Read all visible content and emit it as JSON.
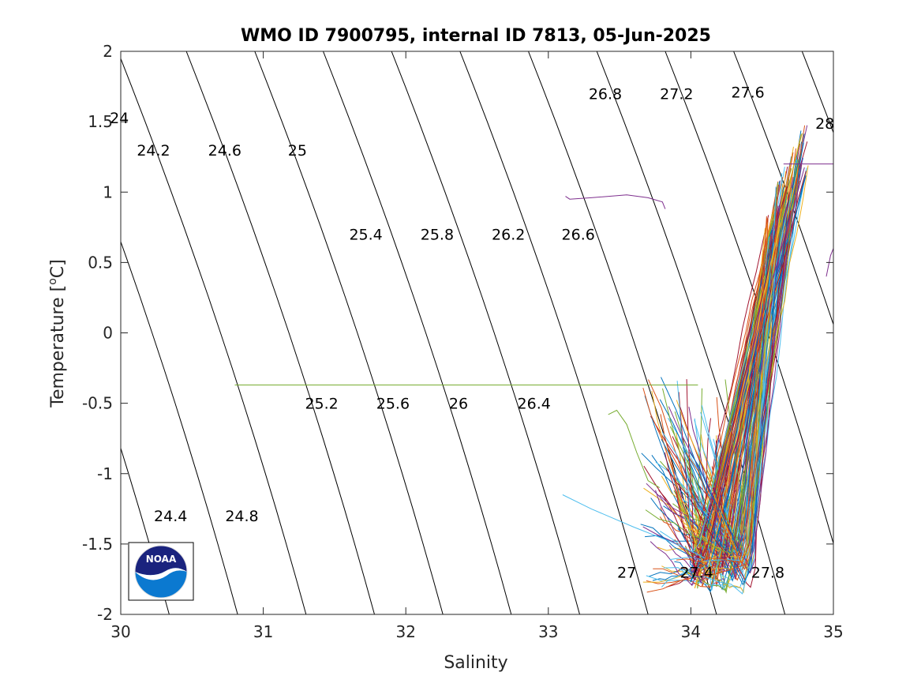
{
  "chart_data": {
    "type": "line",
    "title": "WMO ID 7900795, internal ID 7813, 05-Jun-2025",
    "xlabel": "Salinity",
    "ylabel": "Temperature [°C]",
    "ylabel_main": "Temperature [",
    "ylabel_sup": "o",
    "ylabel_end": "C]",
    "xlim": [
      30,
      35
    ],
    "ylim": [
      -2,
      2
    ],
    "xticks": [
      30,
      31,
      32,
      33,
      34,
      35
    ],
    "yticks": [
      -2,
      -1.5,
      -1,
      -0.5,
      0,
      0.5,
      1,
      1.5,
      2
    ],
    "xtick_labels": [
      "30",
      "31",
      "32",
      "33",
      "34",
      "35"
    ],
    "ytick_labels": [
      "-2",
      "-1.5",
      "-1",
      "-0.5",
      "0",
      "0.5",
      "1",
      "1.5",
      "2"
    ],
    "grid": false,
    "box": true,
    "density_contours": {
      "levels": [
        24,
        24.2,
        24.4,
        24.6,
        24.8,
        25,
        25.2,
        25.4,
        25.6,
        25.8,
        26,
        26.2,
        26.4,
        26.6,
        26.8,
        27,
        27.2,
        27.4,
        27.6,
        27.8,
        28
      ],
      "labels": [
        {
          "text": "24",
          "s": 29.99,
          "t": 1.53
        },
        {
          "text": "24.2",
          "s": 30.23,
          "t": 1.3
        },
        {
          "text": "24.6",
          "s": 30.73,
          "t": 1.3
        },
        {
          "text": "25",
          "s": 31.24,
          "t": 1.3
        },
        {
          "text": "25.4",
          "s": 31.72,
          "t": 0.7
        },
        {
          "text": "25.8",
          "s": 32.22,
          "t": 0.7
        },
        {
          "text": "26.2",
          "s": 32.72,
          "t": 0.7
        },
        {
          "text": "26.6",
          "s": 33.21,
          "t": 0.7
        },
        {
          "text": "26.8",
          "s": 33.4,
          "t": 1.7
        },
        {
          "text": "27.2",
          "s": 33.9,
          "t": 1.7
        },
        {
          "text": "27.6",
          "s": 34.4,
          "t": 1.71
        },
        {
          "text": "28",
          "s": 34.94,
          "t": 1.49
        },
        {
          "text": "25.2",
          "s": 31.41,
          "t": -0.5
        },
        {
          "text": "25.6",
          "s": 31.91,
          "t": -0.5
        },
        {
          "text": "26",
          "s": 32.37,
          "t": -0.5
        },
        {
          "text": "26.4",
          "s": 32.9,
          "t": -0.5
        },
        {
          "text": "24.4",
          "s": 30.35,
          "t": -1.3
        },
        {
          "text": "24.8",
          "s": 30.85,
          "t": -1.3
        },
        {
          "text": "27",
          "s": 33.55,
          "t": -1.7
        },
        {
          "text": "27.4",
          "s": 34.04,
          "t": -1.7
        },
        {
          "text": "27.8",
          "s": 34.54,
          "t": -1.7
        }
      ]
    },
    "series": [
      {
        "color": "#7E2F8E",
        "x": [
          33.12,
          33.15,
          33.3,
          33.55,
          33.7,
          33.8,
          33.82
        ],
        "y": [
          0.97,
          0.95,
          0.96,
          0.98,
          0.96,
          0.93,
          0.88
        ]
      },
      {
        "color": "#77AC30",
        "x": [
          30.8,
          31.5,
          32.5,
          33.5,
          33.9,
          34.05
        ],
        "y": [
          -0.37,
          -0.37,
          -0.37,
          -0.37,
          -0.37,
          -0.37
        ]
      },
      {
        "color": "#4DBEEE",
        "x": [
          33.1,
          33.3,
          33.6,
          33.85,
          34.0,
          34.1
        ],
        "y": [
          -1.15,
          -1.25,
          -1.38,
          -1.48,
          -1.55,
          -1.6
        ]
      },
      {
        "color": "#77AC30",
        "x": [
          33.42,
          33.48,
          33.55,
          33.62,
          33.7,
          33.78
        ],
        "y": [
          -0.58,
          -0.55,
          -0.65,
          -0.85,
          -1.05,
          -1.1
        ]
      },
      {
        "color": "#7E2F8E",
        "x": [
          34.95,
          34.98,
          35.0
        ],
        "y": [
          0.4,
          0.55,
          0.6
        ]
      },
      {
        "color": "#7E2F8E",
        "x": [
          34.65,
          34.8,
          35.0
        ],
        "y": [
          1.2,
          1.2,
          1.2
        ]
      }
    ],
    "profile_bundle": {
      "count": 150,
      "colors": [
        "#0072BD",
        "#D95319",
        "#EDB120",
        "#7E2F8E",
        "#77AC30",
        "#4DBEEE",
        "#A2142F"
      ],
      "surface_s": [
        33.65,
        34.25
      ],
      "surface_t": [
        -1.85,
        -0.3
      ],
      "min_s": [
        34.0,
        34.45
      ],
      "min_t": [
        -1.87,
        -1.5
      ],
      "deep_s": [
        34.52,
        34.82
      ],
      "deep_t": [
        0.4,
        1.58
      ]
    },
    "logo_text": "NOAA"
  }
}
